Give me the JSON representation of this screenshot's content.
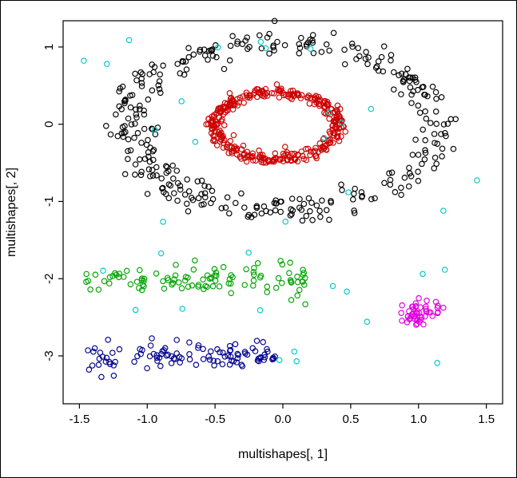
{
  "window": {
    "background": "#ffffff",
    "border_color": "#000000"
  },
  "chart_data": {
    "type": "scatter",
    "title": "",
    "xlabel": "multishapes[, 1]",
    "ylabel": "multishapes[, 2]",
    "xlim": [
      -1.62,
      1.62
    ],
    "ylim": [
      -3.62,
      1.34
    ],
    "x_ticks": [
      -1.5,
      -1.0,
      -0.5,
      0.0,
      0.5,
      1.0,
      1.5
    ],
    "x_tick_labels": [
      "-1.5",
      "-1.0",
      "-0.5",
      "0.0",
      "0.5",
      "1.0",
      "1.5"
    ],
    "y_ticks": [
      -3,
      -2,
      -1,
      0,
      1
    ],
    "y_tick_labels": [
      "-3",
      "-2",
      "-1",
      "0",
      "1"
    ],
    "grid": false,
    "legend": "none",
    "marker": "open-circle",
    "point_radius_px": 3.2,
    "point_stroke_width": 1.15,
    "clusters": [
      {
        "name": "outer-circle-black",
        "shape": "large ring centered near origin",
        "color": "#000000",
        "type": "ring",
        "n": 345,
        "cx": 0.0,
        "cy": -0.02,
        "rx": 1.14,
        "ry": 1.08,
        "jitter": 0.09,
        "seed": 101
      },
      {
        "name": "inner-circle-red",
        "shape": "small dense ring centered near origin",
        "color": "#cc0000",
        "type": "ring",
        "n": 355,
        "cx": -0.05,
        "cy": -0.02,
        "rx": 0.45,
        "ry": 0.43,
        "jitter": 0.035,
        "seed": 202
      },
      {
        "name": "upper-band-green",
        "shape": "horizontal band near y = -2",
        "color": "#00a400",
        "type": "band",
        "n": 105,
        "x0": -1.45,
        "x1": 0.17,
        "y": -2.0,
        "sd": 0.1,
        "seed": 303
      },
      {
        "name": "lower-band-navy",
        "shape": "horizontal band near y = -3",
        "color": "#000090",
        "type": "band",
        "n": 105,
        "x0": -1.45,
        "x1": -0.04,
        "y": -3.0,
        "sd": 0.09,
        "seed": 404
      },
      {
        "name": "compact-blob-magenta",
        "shape": "tight cluster near (1.0, -2.45)",
        "color": "#dd00dd",
        "type": "blob",
        "n": 50,
        "cx": 1.0,
        "cy": -2.45,
        "sd": 0.08,
        "seed": 505
      },
      {
        "name": "noise-cyan",
        "shape": "uniform scatter over whole plot",
        "color": "#00c8c8",
        "type": "uniform",
        "n": 34,
        "x0": -1.5,
        "x1": 1.45,
        "y0": -3.45,
        "y1": 1.25,
        "seed": 606
      }
    ]
  }
}
